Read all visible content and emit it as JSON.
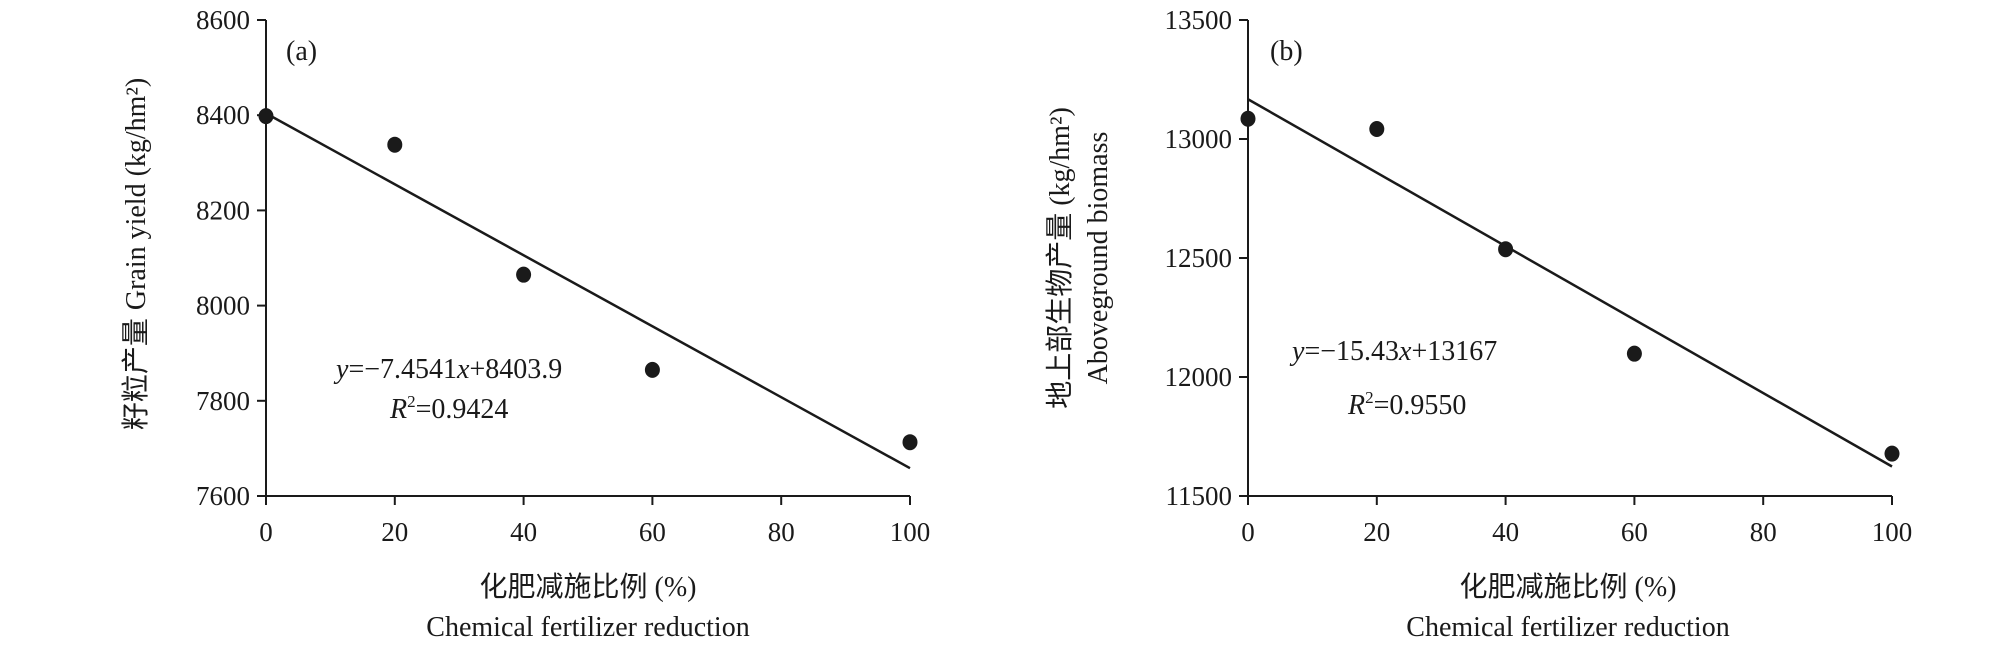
{
  "chart_data": [
    {
      "type": "scatter",
      "panel_label": "(a)",
      "x": [
        0,
        20,
        40,
        60,
        100
      ],
      "y": [
        8398,
        8338,
        8065,
        7865,
        7713
      ],
      "xlim": [
        0,
        100
      ],
      "ylim": [
        7600,
        8600
      ],
      "xticks": [
        "0",
        "20",
        "40",
        "60",
        "80",
        "100"
      ],
      "yticks": [
        "7600",
        "7800",
        "8000",
        "8200",
        "8400",
        "8600"
      ],
      "xlabel_cn": "化肥减施比例 (%)",
      "xlabel_en": "Chemical fertilizer reduction",
      "ylabel_cn": "籽粒产量",
      "ylabel_en": "Grain yield (kg/hm²)",
      "trendline": {
        "slope": -7.4541,
        "intercept": 8403.9
      },
      "equation": {
        "y": "y",
        "rhs_a": "=−7.4541",
        "x": "x",
        "rhs_b": "+8403.9"
      },
      "r2": {
        "R": "R",
        "sup": "2",
        "value": "=0.9424"
      },
      "grid": false,
      "legend": "none"
    },
    {
      "type": "scatter",
      "panel_label": "(b)",
      "x": [
        0,
        20,
        40,
        60,
        100
      ],
      "y": [
        13085,
        13042,
        12537,
        12098,
        11678
      ],
      "xlim": [
        0,
        100
      ],
      "ylim": [
        11500,
        13500
      ],
      "xticks": [
        "0",
        "20",
        "40",
        "60",
        "80",
        "100"
      ],
      "yticks": [
        "11500",
        "12000",
        "12500",
        "13000",
        "13500"
      ],
      "xlabel_cn": "化肥减施比例 (%)",
      "xlabel_en": "Chemical fertilizer reduction",
      "ylabel_cn": "地上部生物产量 (kg/hm²)",
      "ylabel_en": "Aboveground biomass",
      "trendline": {
        "slope": -15.43,
        "intercept": 13167
      },
      "equation": {
        "y": "y",
        "rhs_a": "=−15.43",
        "x": "x",
        "rhs_b": "+13167"
      },
      "r2": {
        "R": "R",
        "sup": "2",
        "value": "=0.9550"
      },
      "grid": false,
      "legend": "none"
    }
  ],
  "colors": {
    "ink": "#1a1a1a",
    "background": "#ffffff"
  }
}
